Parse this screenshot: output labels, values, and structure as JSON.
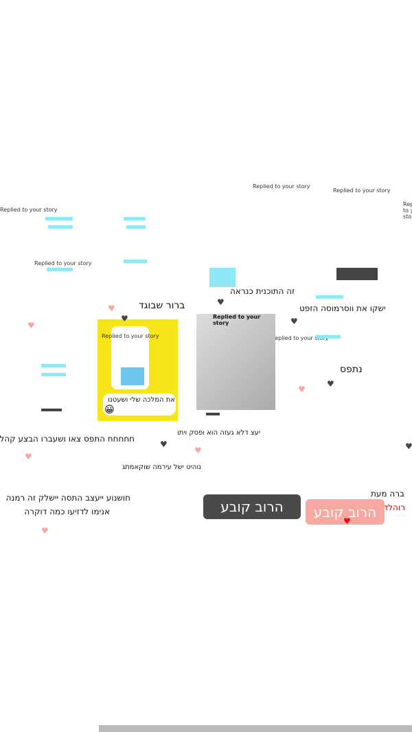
{
  "story_reply_label": "Replied to your story",
  "captions": {
    "clearly_cheating": "ברור שבוגד",
    "probably_the_plan": "זה התוכנית כנראה",
    "caught": "נתפס",
    "my_queen": "את המלכה שלי ושעטנו",
    "line_right_top": "ישקו את ווסרמוסה הזפט",
    "line_mid": "חחחחח התפס צאו ושעברו הבצע קהלו",
    "line_center": "יעצ דלא געזה הוא ופסק ויתו",
    "line_center2": "נוהיט ישל עירמה שוקאמתג",
    "line_bottom1": "חושנוע ייעצב התסה יישלק זה רמנה",
    "line_bottom2": "אנימו לדזיעו כמה דוקרה",
    "right_line1": "ברה מעת",
    "right_line2": "רוהלדו שנגו"
  },
  "buttons": {
    "majority_dark": "הרוב קובע",
    "majority_pink": "הרוב קובע"
  },
  "colors": {
    "yellow": "#f7e51a",
    "cyan": "#8ee8f6",
    "pink": "#f7a8a0",
    "dark": "#444444"
  }
}
